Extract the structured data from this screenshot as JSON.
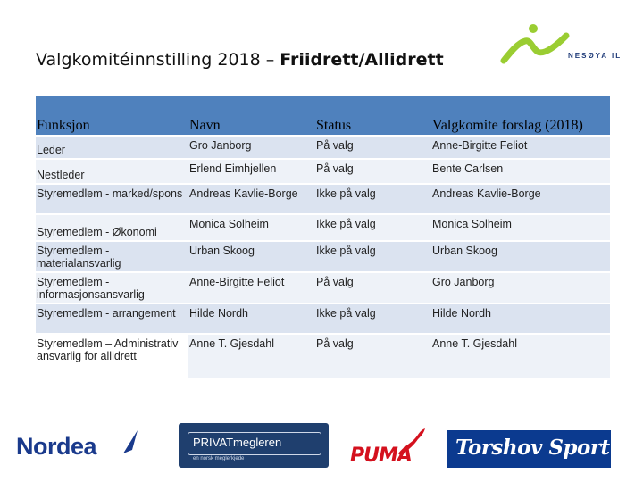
{
  "title": {
    "regular": "Valgkomitéinnstilling 2018 – ",
    "bold": "Friidrett/Allidrett"
  },
  "logo": {
    "text": "NESØYA IL",
    "color": "#9acd32"
  },
  "table": {
    "headers": [
      "Funksjon",
      "Navn",
      "Status",
      "Valgkomite forslag (2018)"
    ],
    "rows": [
      [
        "Leder",
        "Gro Janborg",
        "På valg",
        "Anne-Birgitte Feliot"
      ],
      [
        "Nestleder",
        "Erlend Eimhjellen",
        "På valg",
        "Bente Carlsen"
      ],
      [
        "Styremedlem - marked/spons",
        "Andreas Kavlie-Borge",
        "Ikke på valg",
        "Andreas Kavlie-Borge"
      ],
      [
        "Styremedlem - Økonomi",
        "Monica Solheim",
        "Ikke på valg",
        "Monica Solheim"
      ],
      [
        "Styremedlem - materialansvarlig",
        "Urban Skoog",
        "Ikke på valg",
        "Urban Skoog"
      ],
      [
        "Styremedlem - informasjonsansvarlig",
        "Anne-Birgitte Feliot",
        "På valg",
        "Gro Janborg"
      ],
      [
        "Styremedlem - arrangement",
        "Hilde Nordh",
        "Ikke på valg",
        "Hilde Nordh"
      ],
      [
        "Styremedlem – Administrativ ansvarlig for allidrett",
        "Anne T. Gjesdahl",
        "På valg",
        "Anne T. Gjesdahl"
      ]
    ],
    "header_color": "#4f81bd"
  },
  "sponsors": {
    "nordea": "Nordea",
    "privat": "PRIVATmegleren",
    "privat_sub": "en norsk meglerkjede",
    "puma": "PUMA",
    "torshov": "Torshov Sport"
  }
}
